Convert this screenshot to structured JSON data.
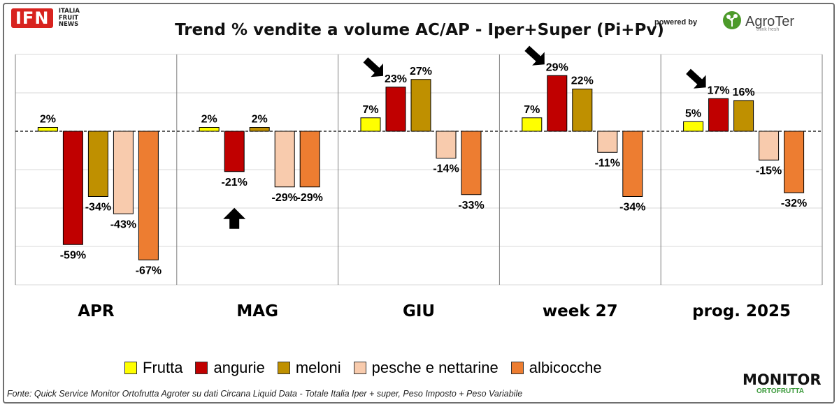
{
  "header": {
    "logo_ifn": "IFN",
    "logo_ifn_line1": "ITALIA",
    "logo_ifn_line2": "FRUIT",
    "logo_ifn_line3": "NEWS",
    "title": "Trend % vendite a volume AC/AP - Iper+Super (Pi+Pv)",
    "powered_by": "powered by",
    "agroter_name": "AgroTer",
    "agroter_tagline": "think fresh"
  },
  "chart_data": {
    "type": "bar",
    "title": "Trend % vendite a volume AC/AP - Iper+Super (Pi+Pv)",
    "categories": [
      "APR",
      "MAG",
      "GIU",
      "week 27",
      "prog. 2025"
    ],
    "series": [
      {
        "name": "Frutta",
        "color": "#ffff00",
        "values": [
          2,
          2,
          7,
          7,
          5
        ]
      },
      {
        "name": "angurie",
        "color": "#c00000",
        "values": [
          -59,
          -21,
          23,
          29,
          17
        ]
      },
      {
        "name": "meloni",
        "color": "#bf9000",
        "values": [
          -34,
          2,
          27,
          22,
          16
        ]
      },
      {
        "name": "pesche e nettarine",
        "color": "#f8cbad",
        "values": [
          -43,
          -29,
          -14,
          -11,
          -15
        ]
      },
      {
        "name": "albicocche",
        "color": "#ed7d31",
        "values": [
          -67,
          -29,
          -33,
          -34,
          -32
        ]
      }
    ],
    "data_labels": [
      [
        "2%",
        "-59%",
        "-34%",
        "-43%",
        "-67%"
      ],
      [
        "2%",
        "-21%",
        "2%",
        "-29%",
        "-29%"
      ],
      [
        "7%",
        "23%",
        "27%",
        "-14%",
        "-33%"
      ],
      [
        "7%",
        "29%",
        "22%",
        "-11%",
        "-34%"
      ],
      [
        "5%",
        "17%",
        "16%",
        "-15%",
        "-32%"
      ]
    ],
    "ylim": [
      -80,
      40
    ],
    "gridlines": [
      -80,
      -60,
      -40,
      -20,
      20,
      40
    ],
    "legend_position": "bottom",
    "arrows": [
      {
        "category": "MAG",
        "series": "angurie",
        "direction": "up"
      },
      {
        "category": "GIU",
        "series": "angurie",
        "direction": "down-right"
      },
      {
        "category": "week 27",
        "series": "angurie",
        "direction": "down-right"
      },
      {
        "category": "prog. 2025",
        "series": "angurie",
        "direction": "down-right"
      }
    ]
  },
  "footer": {
    "source": "Fonte: Quick Service Monitor Ortofrutta Agroter su dati Circana Liquid Data - Totale Italia Iper + super, Peso Imposto + Peso Variabile",
    "monitor_top": "MONITOR",
    "monitor_bottom": "ORTOFRUTTA"
  }
}
